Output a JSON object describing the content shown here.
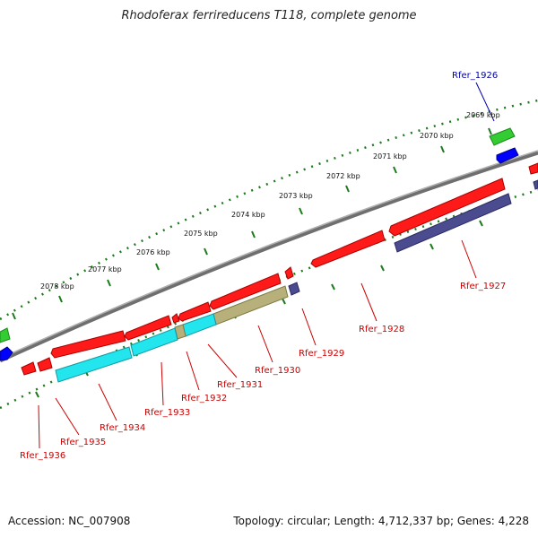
{
  "title": "Rhodoferax ferrireducens T118, complete genome",
  "accession_text": "Accession: NC_007908",
  "summary_text": "Topology: circular; Length: 4,712,337 bp; Genes: 4,228",
  "colors": {
    "forward_gene": "#ff1a1a",
    "reverse_gene": "#0000ff",
    "cds_cyan": "#22e5ee",
    "cds_olive": "#b7b07a",
    "cds_slate": "#4b4b8f",
    "rna_green": "#33cc33",
    "backbone": "#808080",
    "tick_dots": "#1d7a1d",
    "label_red": "#cc0000",
    "label_blue": "#0000aa"
  },
  "scale_labels": [
    "2069 kbp",
    "2070 kbp",
    "2071 kbp",
    "2072 kbp",
    "2073 kbp",
    "2074 kbp",
    "2075 kbp",
    "2076 kbp",
    "2077 kbp",
    "2078 kbp"
  ],
  "gene_labels": [
    "Rfer_1926",
    "Rfer_1927",
    "Rfer_1928",
    "Rfer_1929",
    "Rfer_1930",
    "Rfer_1931",
    "Rfer_1932",
    "Rfer_1933",
    "Rfer_1934",
    "Rfer_1935",
    "Rfer_1936"
  ]
}
